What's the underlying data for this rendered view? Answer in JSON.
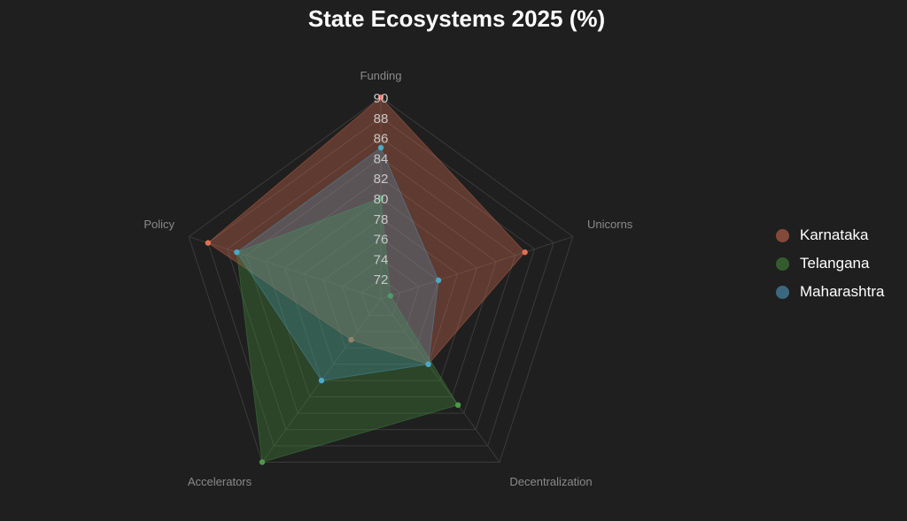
{
  "chart_data": {
    "type": "radar",
    "title": "State Ecosystems 2025 (%)",
    "categories": [
      "Funding",
      "Unicorns",
      "Decentralization",
      "Accelerators",
      "Policy"
    ],
    "r_ticks": [
      "72",
      "74",
      "76",
      "78",
      "80",
      "82",
      "84",
      "86",
      "88",
      "90"
    ],
    "rlim": [
      70,
      90
    ],
    "grid": true,
    "legend_position": "right",
    "series": [
      {
        "name": "Karnataka",
        "values": [
          90,
          85,
          78,
          75,
          88
        ],
        "color": "#e07050",
        "fill": "rgba(214,110,80,0.35)"
      },
      {
        "name": "Telangana",
        "values": [
          80,
          71,
          83,
          90,
          85
        ],
        "color": "#4a9a4a",
        "fill": "rgba(70,140,60,0.35)"
      },
      {
        "name": "Maharashtra",
        "values": [
          85,
          76,
          78,
          80,
          85
        ],
        "color": "#4aa8c8",
        "fill": "rgba(80,165,205,0.25)"
      }
    ]
  }
}
